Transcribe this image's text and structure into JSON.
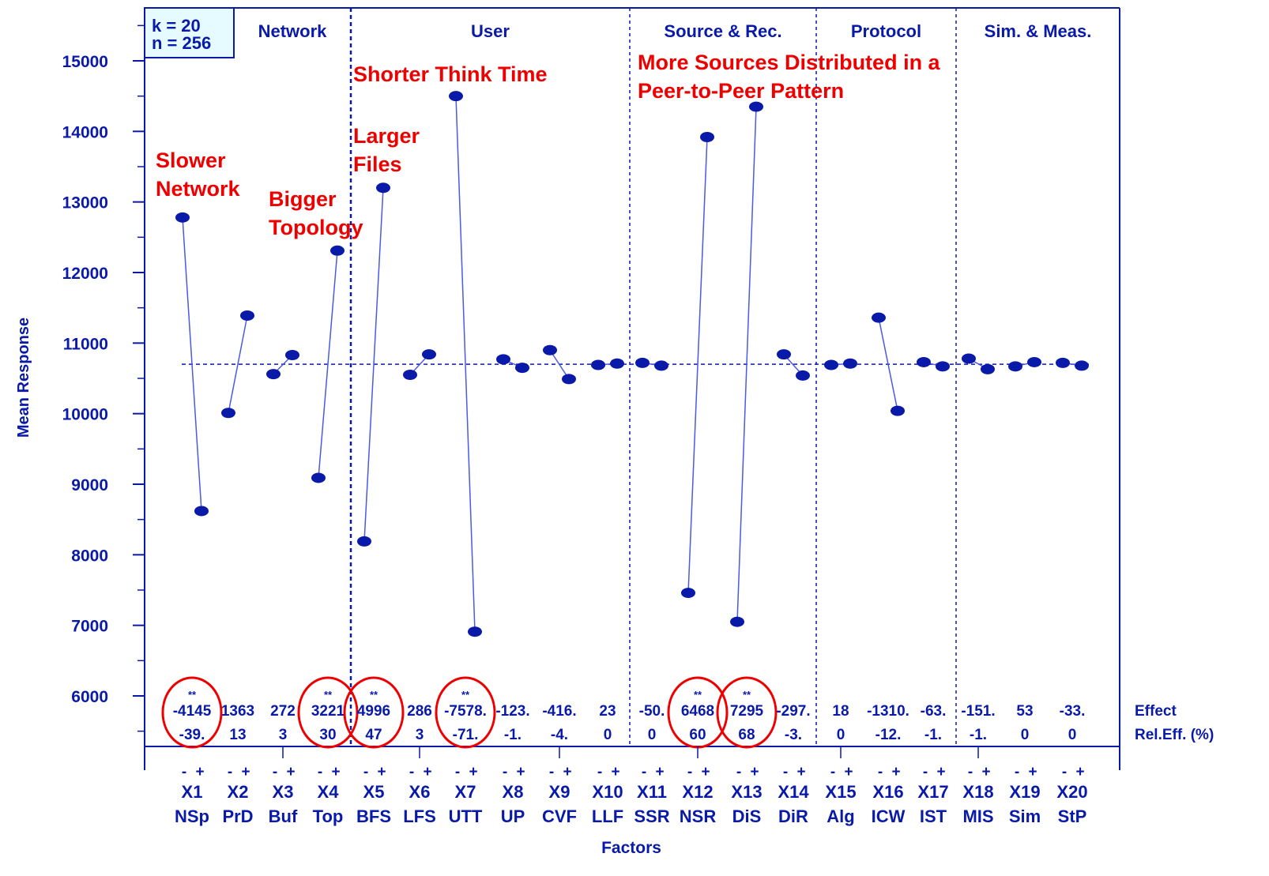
{
  "chart_data": {
    "type": "line",
    "chart_kind": "main effects plot",
    "design_box": [
      "k = 20",
      "n = 256"
    ],
    "ylabel": "Mean Response",
    "xlabel": "Factors",
    "ylim": [
      5250,
      15800
    ],
    "yticks": [
      6000,
      7000,
      8000,
      9000,
      10000,
      11000,
      12000,
      13000,
      14000,
      15000
    ],
    "grand_mean": 10700,
    "level_labels": [
      "-",
      "+"
    ],
    "row_labels": {
      "effect": "Effect",
      "rel_eff": "Rel.Eff. (%)"
    },
    "groups": [
      {
        "name": "Network",
        "from": 1,
        "to": 4
      },
      {
        "name": "User",
        "from": 5,
        "to": 10
      },
      {
        "name": "Source & Rec.",
        "from": 11,
        "to": 14
      },
      {
        "name": "Protocol",
        "from": 15,
        "to": 17
      },
      {
        "name": "Sim. & Meas.",
        "from": 18,
        "to": 20
      }
    ],
    "factors": [
      {
        "id": "X1",
        "abbr": "NSp",
        "minus": 12780,
        "plus": 8620,
        "effect": "-4145",
        "rel_eff": "-39.",
        "significance": "**",
        "highlighted": true
      },
      {
        "id": "X2",
        "abbr": "PrD",
        "minus": 10010,
        "plus": 11390,
        "effect": "1363",
        "rel_eff": "13",
        "significance": "",
        "highlighted": false
      },
      {
        "id": "X3",
        "abbr": "Buf",
        "minus": 10560,
        "plus": 10830,
        "effect": "272",
        "rel_eff": "3",
        "significance": "",
        "highlighted": false
      },
      {
        "id": "X4",
        "abbr": "Top",
        "minus": 9090,
        "plus": 12310,
        "effect": "3221",
        "rel_eff": "30",
        "significance": "**",
        "highlighted": true
      },
      {
        "id": "X5",
        "abbr": "BFS",
        "minus": 8190,
        "plus": 13200,
        "effect": "4996",
        "rel_eff": "47",
        "significance": "**",
        "highlighted": true
      },
      {
        "id": "X6",
        "abbr": "LFS",
        "minus": 10550,
        "plus": 10840,
        "effect": "286",
        "rel_eff": "3",
        "significance": "",
        "highlighted": false
      },
      {
        "id": "X7",
        "abbr": "UTT",
        "minus": 14500,
        "plus": 6910,
        "effect": "-7578.",
        "rel_eff": "-71.",
        "significance": "**",
        "highlighted": true
      },
      {
        "id": "X8",
        "abbr": "UP",
        "minus": 10770,
        "plus": 10650,
        "effect": "-123.",
        "rel_eff": "-1.",
        "significance": "",
        "highlighted": false
      },
      {
        "id": "X9",
        "abbr": "CVF",
        "minus": 10900,
        "plus": 10490,
        "effect": "-416.",
        "rel_eff": "-4.",
        "significance": "",
        "highlighted": false
      },
      {
        "id": "X10",
        "abbr": "LLF",
        "minus": 10690,
        "plus": 10710,
        "effect": "23",
        "rel_eff": "0",
        "significance": "",
        "highlighted": false
      },
      {
        "id": "X11",
        "abbr": "SSR",
        "minus": 10720,
        "plus": 10680,
        "effect": "-50.",
        "rel_eff": "0",
        "significance": "",
        "highlighted": false
      },
      {
        "id": "X12",
        "abbr": "NSR",
        "minus": 7460,
        "plus": 13920,
        "effect": "6468",
        "rel_eff": "60",
        "significance": "**",
        "highlighted": true
      },
      {
        "id": "X13",
        "abbr": "DiS",
        "minus": 7050,
        "plus": 14350,
        "effect": "7295",
        "rel_eff": "68",
        "significance": "**",
        "highlighted": true
      },
      {
        "id": "X14",
        "abbr": "DiR",
        "minus": 10840,
        "plus": 10540,
        "effect": "-297.",
        "rel_eff": "-3.",
        "significance": "",
        "highlighted": false
      },
      {
        "id": "X15",
        "abbr": "Alg",
        "minus": 10690,
        "plus": 10710,
        "effect": "18",
        "rel_eff": "0",
        "significance": "",
        "highlighted": false
      },
      {
        "id": "X16",
        "abbr": "ICW",
        "minus": 11360,
        "plus": 10040,
        "effect": "-1310.",
        "rel_eff": "-12.",
        "significance": "",
        "highlighted": false
      },
      {
        "id": "X17",
        "abbr": "IST",
        "minus": 10730,
        "plus": 10670,
        "effect": "-63.",
        "rel_eff": "-1.",
        "significance": "",
        "highlighted": false
      },
      {
        "id": "X18",
        "abbr": "MIS",
        "minus": 10780,
        "plus": 10630,
        "effect": "-151.",
        "rel_eff": "-1.",
        "significance": "",
        "highlighted": false
      },
      {
        "id": "X19",
        "abbr": "Sim",
        "minus": 10670,
        "plus": 10730,
        "effect": "53",
        "rel_eff": "0",
        "significance": "",
        "highlighted": false
      },
      {
        "id": "X20",
        "abbr": "StP",
        "minus": 10720,
        "plus": 10680,
        "effect": "-33.",
        "rel_eff": "0",
        "significance": "",
        "highlighted": false
      }
    ],
    "annotations": [
      {
        "lines": [
          "Slower",
          "Network"
        ],
        "factor": "X1"
      },
      {
        "lines": [
          "Bigger",
          "Topology"
        ],
        "factor": "X4"
      },
      {
        "lines": [
          "Larger",
          "Files"
        ],
        "factor": "X5"
      },
      {
        "lines": [
          "Shorter Think Time"
        ],
        "factor": "X7"
      },
      {
        "lines": [
          "More Sources Distributed in a",
          "Peer-to-Peer Pattern"
        ],
        "factor": "X12"
      }
    ],
    "colors": {
      "series": "#0a1aa8",
      "line": "#4a5ae6",
      "annotation": "#ee0000",
      "highlight": "#ee0000",
      "grand_mean": "#0a1aa8"
    }
  }
}
